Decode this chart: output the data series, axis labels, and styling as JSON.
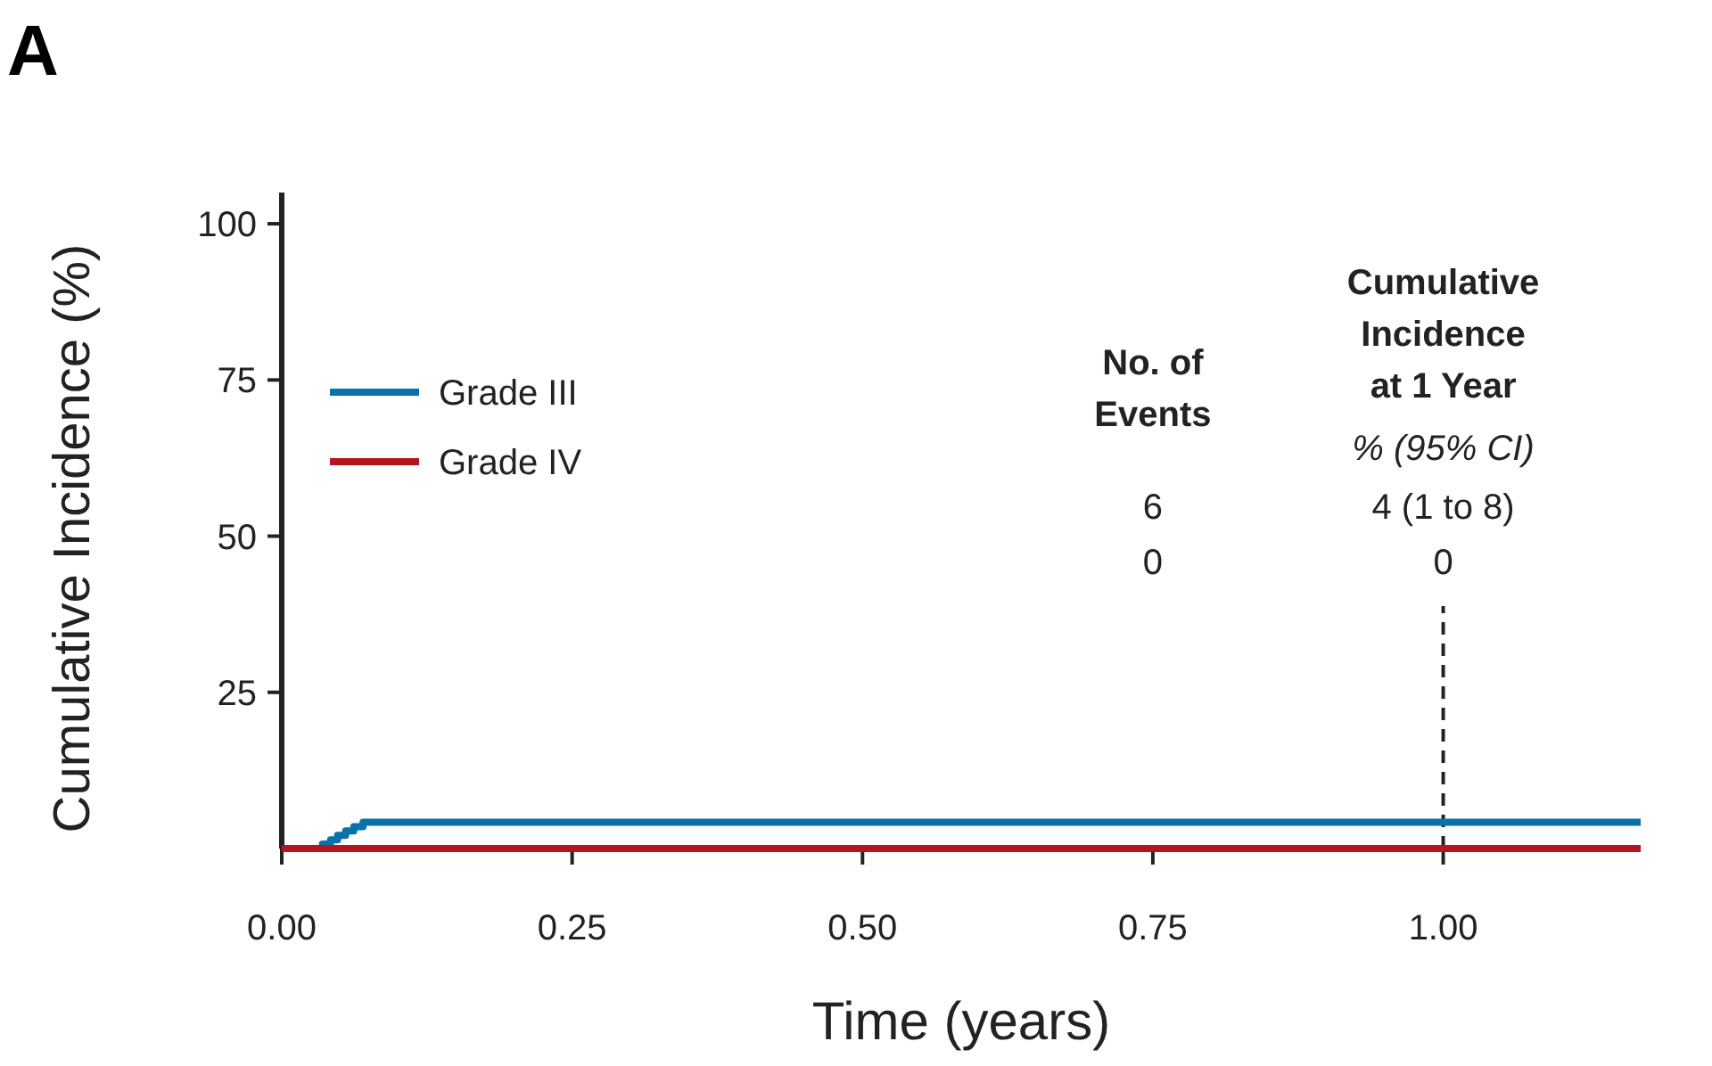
{
  "chart_data": {
    "type": "step",
    "title": "A",
    "xlabel": "Time (years)",
    "ylabel": "Cumulative Incidence (%)",
    "xlim": [
      0,
      1.17
    ],
    "ylim": [
      0,
      105
    ],
    "xticks": [
      {
        "value": 0,
        "label": "0.00"
      },
      {
        "value": 0.25,
        "label": "0.25"
      },
      {
        "value": 0.5,
        "label": "0.50"
      },
      {
        "value": 0.75,
        "label": "0.75"
      },
      {
        "value": 1,
        "label": "1.00"
      }
    ],
    "yticks": [
      25,
      50,
      75,
      100
    ],
    "legend": "top left",
    "grid": false,
    "series": [
      {
        "name": "Grade III",
        "color": "#0a72a8",
        "x": [
          0,
          0.035,
          0.042,
          0.048,
          0.055,
          0.062,
          0.07,
          1.17
        ],
        "values": [
          0,
          0.7,
          1.4,
          2.1,
          2.8,
          3.5,
          4.2,
          4.2
        ]
      },
      {
        "name": "Grade IV",
        "color": "#b3161f",
        "x": [
          0,
          1.17
        ],
        "values": [
          0,
          0
        ]
      }
    ],
    "ref_lines": [
      {
        "axis": "x",
        "value": 1,
        "line_style": "dashed",
        "color": "#222222"
      }
    ],
    "annotations": [
      "No. of Events",
      "Cumulative Incidence at 1 Year",
      "% (95% CI)",
      "6",
      "4 (1 to 8)",
      "0",
      "0"
    ]
  }
}
